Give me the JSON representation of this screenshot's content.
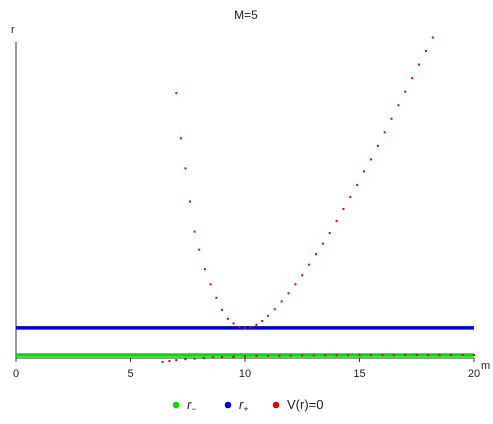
{
  "chart_data": {
    "type": "scatter",
    "title": "M=5",
    "xlabel": "m",
    "ylabel": "r",
    "xlim": [
      0,
      20
    ],
    "ylim": [
      0,
      10.5
    ],
    "grid": false,
    "legend_position": "bottom-center",
    "x_ticks": [
      "0",
      "5",
      "10",
      "15",
      "20"
    ],
    "series": [
      {
        "name": "r−",
        "symbol": "r",
        "subscript": "−",
        "color": "#00dd00",
        "style": "dense-points-line",
        "x": [
          0,
          20
        ],
        "y": [
          0.1,
          0.1
        ]
      },
      {
        "name": "r+",
        "symbol": "r",
        "subscript": "+",
        "color": "#0000cc",
        "style": "dense-points-line",
        "x": [
          0,
          20
        ],
        "y": [
          1.0,
          1.0
        ]
      },
      {
        "name": "V(r)=0",
        "symbol": "V(r)=0",
        "subscript": "",
        "color": "#dd0000",
        "style": "sparse-points",
        "x": [
          7.0,
          7.2,
          7.4,
          7.6,
          7.8,
          8.0,
          8.25,
          8.5,
          8.75,
          9.0,
          9.25,
          9.5,
          9.75,
          10.0,
          10.25,
          10.5,
          10.75,
          11.0,
          11.3,
          11.6,
          11.9,
          12.2,
          12.5,
          12.8,
          13.1,
          13.4,
          13.7,
          14.0,
          14.3,
          14.6,
          14.9,
          15.2,
          15.5,
          15.8,
          16.1,
          16.4,
          16.7,
          17.0,
          17.3,
          17.6,
          17.9,
          18.2,
          5.3,
          5.5,
          5.8,
          6.1,
          6.4,
          6.7,
          7.0,
          7.4,
          7.8,
          8.2,
          8.6,
          9.0,
          9.5,
          10.0,
          10.5,
          11.0,
          11.5,
          12.0,
          12.5,
          13.0,
          13.5,
          14.0,
          14.5,
          15.0,
          15.5,
          16.0,
          16.5,
          17.0,
          17.5,
          18.0,
          18.5,
          19.0,
          19.5,
          20.0
        ],
        "y": [
          8.8,
          7.3,
          6.3,
          5.2,
          4.2,
          3.6,
          2.95,
          2.45,
          2.0,
          1.6,
          1.3,
          1.15,
          1.03,
          1.0,
          1.02,
          1.1,
          1.23,
          1.4,
          1.62,
          1.88,
          2.15,
          2.45,
          2.75,
          3.1,
          3.45,
          3.8,
          4.15,
          4.55,
          4.95,
          5.35,
          5.75,
          6.2,
          6.6,
          7.05,
          7.5,
          7.95,
          8.4,
          8.85,
          9.3,
          9.75,
          10.2,
          10.65,
          -0.3,
          -0.26,
          -0.21,
          -0.17,
          -0.13,
          -0.1,
          -0.07,
          -0.04,
          -0.02,
          0.0,
          0.02,
          0.03,
          0.045,
          0.055,
          0.065,
          0.07,
          0.075,
          0.08,
          0.082,
          0.085,
          0.087,
          0.089,
          0.09,
          0.092,
          0.093,
          0.094,
          0.095,
          0.096,
          0.097,
          0.097,
          0.098,
          0.098,
          0.099,
          0.099
        ]
      }
    ]
  }
}
